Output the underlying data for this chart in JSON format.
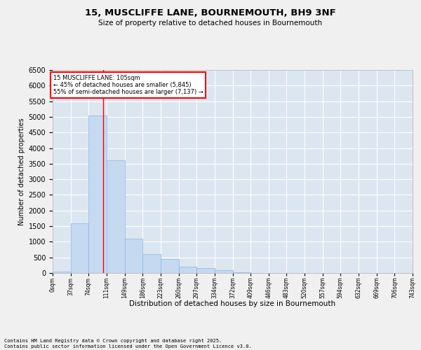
{
  "title1": "15, MUSCLIFFE LANE, BOURNEMOUTH, BH9 3NF",
  "title2": "Size of property relative to detached houses in Bournemouth",
  "xlabel": "Distribution of detached houses by size in Bournemouth",
  "ylabel": "Number of detached properties",
  "bar_color": "#c5d9f1",
  "bar_edge_color": "#8db4e2",
  "background_color": "#dce6f1",
  "grid_color": "#ffffff",
  "vline_color": "#ff0000",
  "annotation_text": "15 MUSCLIFFE LANE: 105sqm\n← 45% of detached houses are smaller (5,845)\n55% of semi-detached houses are larger (7,137) →",
  "property_size": 105,
  "footer": "Contains HM Land Registry data © Crown copyright and database right 2025.\nContains public sector information licensed under the Open Government Licence v3.0.",
  "bins": [
    0,
    37,
    74,
    111,
    149,
    186,
    223,
    260,
    297,
    334,
    372,
    409,
    446,
    483,
    520,
    557,
    594,
    632,
    669,
    706,
    743
  ],
  "counts": [
    50,
    1600,
    5050,
    3600,
    1100,
    600,
    450,
    200,
    150,
    100,
    30,
    10,
    5,
    3,
    2,
    1,
    1,
    1,
    1,
    1
  ],
  "ylim": [
    0,
    6500
  ],
  "yticks": [
    0,
    500,
    1000,
    1500,
    2000,
    2500,
    3000,
    3500,
    4000,
    4500,
    5000,
    5500,
    6000,
    6500
  ]
}
